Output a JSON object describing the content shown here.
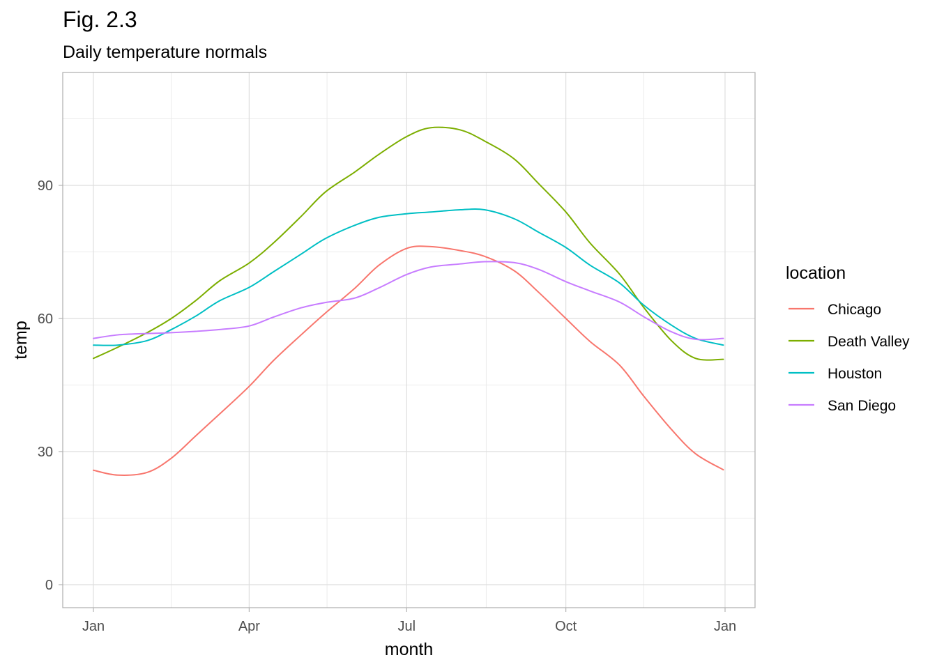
{
  "title": "Fig. 2.3",
  "subtitle": "Daily temperature normals",
  "chart_data": {
    "type": "line",
    "xlabel": "month",
    "ylabel": "temp",
    "x_ticks": [
      "Jan",
      "Apr",
      "Jul",
      "Oct",
      "Jan"
    ],
    "y_ticks": [
      0,
      30,
      60,
      90
    ],
    "ylim": [
      -5,
      115
    ],
    "grid": true,
    "legend_title": "location",
    "legend_position": "right",
    "x": [
      "2019-01-01",
      "2019-01-15",
      "2019-02-01",
      "2019-02-15",
      "2019-03-01",
      "2019-03-15",
      "2019-04-01",
      "2019-04-15",
      "2019-05-01",
      "2019-05-15",
      "2019-06-01",
      "2019-06-15",
      "2019-07-01",
      "2019-07-15",
      "2019-08-01",
      "2019-08-15",
      "2019-09-01",
      "2019-09-15",
      "2019-10-01",
      "2019-10-15",
      "2019-11-01",
      "2019-11-15",
      "2019-12-01",
      "2019-12-15",
      "2019-12-31"
    ],
    "series": [
      {
        "name": "Chicago",
        "color": "#F8766D",
        "values": [
          25.8,
          24.7,
          25.3,
          28.5,
          33.5,
          38.5,
          44.7,
          50.5,
          56.3,
          61.2,
          66.8,
          72.0,
          75.8,
          76.2,
          75.3,
          74.0,
          70.8,
          66.0,
          60.0,
          54.8,
          49.5,
          42.5,
          35.0,
          29.5,
          25.9
        ]
      },
      {
        "name": "Death Valley",
        "color": "#7CAE00",
        "values": [
          51.0,
          53.5,
          56.8,
          60.0,
          64.0,
          68.5,
          72.5,
          77.0,
          83.0,
          88.5,
          93.0,
          97.0,
          101.0,
          103.0,
          102.5,
          100.0,
          96.0,
          90.5,
          84.0,
          77.0,
          70.0,
          62.5,
          55.0,
          51.0,
          50.8
        ]
      },
      {
        "name": "Houston",
        "color": "#00BFC4",
        "values": [
          54.0,
          54.0,
          55.0,
          57.5,
          60.5,
          64.0,
          67.0,
          70.5,
          74.5,
          78.0,
          81.0,
          82.8,
          83.6,
          84.0,
          84.5,
          84.5,
          82.5,
          79.5,
          76.0,
          72.0,
          68.0,
          63.0,
          58.5,
          55.5,
          54.0
        ]
      },
      {
        "name": "San Diego",
        "color": "#C77CFF",
        "values": [
          55.5,
          56.3,
          56.6,
          56.8,
          57.1,
          57.5,
          58.3,
          60.3,
          62.4,
          63.6,
          64.6,
          66.9,
          69.9,
          71.6,
          72.3,
          72.8,
          72.6,
          71.1,
          68.3,
          66.2,
          63.7,
          60.4,
          57.0,
          55.3,
          55.5
        ]
      }
    ]
  }
}
